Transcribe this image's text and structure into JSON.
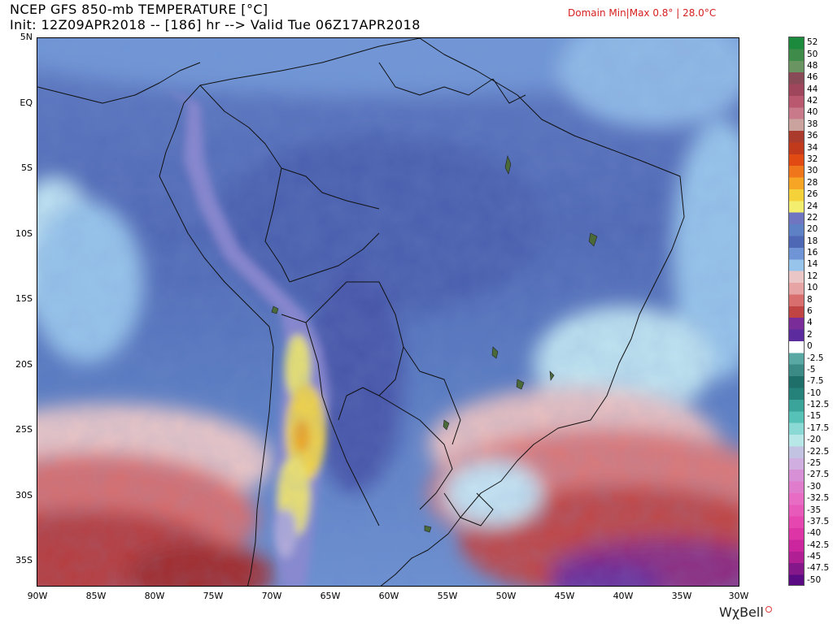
{
  "header": {
    "title": "NCEP GFS 850-mb TEMPERATURE [°C]",
    "run_info": "Init: 12Z09APR2018 -- [186] hr --> Valid Tue 06Z17APR2018",
    "domain_range": "Domain Min|Max 0.8° | 28.0°C"
  },
  "map": {
    "lat_labels": [
      "5N",
      "EQ",
      "5S",
      "10S",
      "15S",
      "20S",
      "25S",
      "30S",
      "35S"
    ],
    "lon_labels": [
      "90W",
      "85W",
      "80W",
      "75W",
      "70W",
      "65W",
      "60W",
      "55W",
      "50W",
      "45W",
      "40W",
      "35W",
      "30W"
    ]
  },
  "legend": {
    "labels": [
      "52",
      "50",
      "48",
      "46",
      "44",
      "42",
      "40",
      "38",
      "36",
      "34",
      "32",
      "30",
      "28",
      "26",
      "24",
      "22",
      "20",
      "18",
      "16",
      "14",
      "12",
      "10",
      "8",
      "6",
      "4",
      "2",
      "0",
      "-2.5",
      "-5",
      "-7.5",
      "-10",
      "-12.5",
      "-15",
      "-17.5",
      "-20",
      "-22.5",
      "-25",
      "-27.5",
      "-30",
      "-32.5",
      "-35",
      "-37.5",
      "-40",
      "-42.5",
      "-45",
      "-47.5",
      "-50"
    ],
    "colors": [
      "#1c8a3c",
      "#3f8c4a",
      "#6a9462",
      "#874a56",
      "#a0465c",
      "#b9586e",
      "#c97a8a",
      "#caa39e",
      "#a93a2c",
      "#c23a1c",
      "#e24a14",
      "#f0761c",
      "#f6a624",
      "#f6d23a",
      "#f4ee6e",
      "#6f75c0",
      "#5e80c4",
      "#4e68b6",
      "#6f95d6",
      "#97c4ea",
      "#eac6c6",
      "#e7a4a4",
      "#d86e6e",
      "#c04444",
      "#7a2c98",
      "#5c2c9e",
      "#ffffff",
      "#5aa8a4",
      "#3c8a86",
      "#1e6e6a",
      "#24827a",
      "#3aa39a",
      "#56c1b6",
      "#8bd9d4",
      "#b7e7e6",
      "#c2c2e2",
      "#d1aee0",
      "#d790d6",
      "#e07ccc",
      "#e86cc4",
      "#e85aba",
      "#e646b0",
      "#dd34a6",
      "#cc269e",
      "#b02094",
      "#84188a",
      "#5a0a82"
    ]
  },
  "branding": {
    "logo_text": "WxBell",
    "logo_chi": "χ"
  }
}
